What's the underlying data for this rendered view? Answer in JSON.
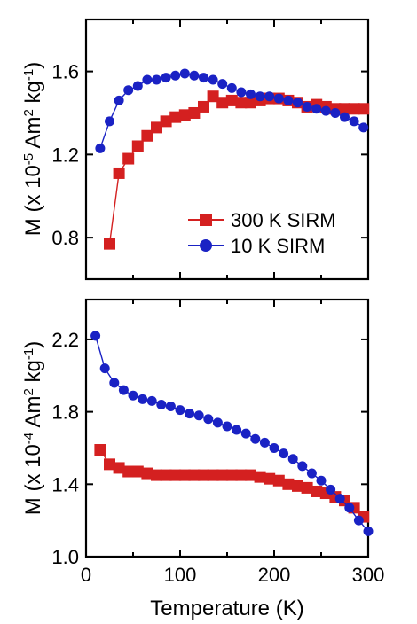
{
  "colors": {
    "red": "#d42020",
    "blue": "#1a22c4",
    "axis": "#000000"
  },
  "chart_data": [
    {
      "type": "line",
      "title": "",
      "ylabel": "M (x 10",
      "ylabel_exp": "-5",
      "ylabel_unit": " Am",
      "ylabel_exp2": "2",
      "ylabel_unit2": " kg",
      "ylabel_exp3": "-1",
      "ylabel_close": ")",
      "xlabel": "",
      "xlim": [
        0,
        300
      ],
      "ylim": [
        0.6,
        1.85
      ],
      "yticks": [
        0.8,
        1.2,
        1.6
      ],
      "yticklabels": [
        "0.8",
        "1.2",
        "1.6"
      ],
      "xticks": [
        0,
        100,
        200,
        300
      ],
      "legend": {
        "position": "lower-right",
        "entries": [
          "300 K SIRM",
          "10 K SIRM"
        ]
      },
      "series": [
        {
          "name": "300 K SIRM",
          "marker": "square",
          "x": [
            25,
            35,
            45,
            55,
            65,
            75,
            85,
            95,
            105,
            115,
            125,
            135,
            145,
            155,
            165,
            175,
            185,
            195,
            205,
            215,
            225,
            235,
            245,
            255,
            265,
            275,
            285,
            295
          ],
          "y": [
            0.77,
            1.11,
            1.18,
            1.24,
            1.29,
            1.33,
            1.36,
            1.38,
            1.39,
            1.4,
            1.43,
            1.48,
            1.45,
            1.46,
            1.45,
            1.45,
            1.46,
            1.47,
            1.47,
            1.46,
            1.45,
            1.43,
            1.44,
            1.43,
            1.42,
            1.42,
            1.42,
            1.42
          ]
        },
        {
          "name": "10 K SIRM",
          "marker": "circle",
          "x": [
            15,
            25,
            35,
            45,
            55,
            65,
            75,
            85,
            95,
            105,
            115,
            125,
            135,
            145,
            155,
            165,
            175,
            185,
            195,
            205,
            215,
            225,
            235,
            245,
            255,
            265,
            275,
            285,
            295
          ],
          "y": [
            1.23,
            1.36,
            1.46,
            1.51,
            1.53,
            1.56,
            1.56,
            1.57,
            1.58,
            1.59,
            1.58,
            1.57,
            1.56,
            1.54,
            1.52,
            1.5,
            1.49,
            1.48,
            1.48,
            1.47,
            1.46,
            1.45,
            1.43,
            1.42,
            1.41,
            1.4,
            1.38,
            1.36,
            1.33
          ]
        }
      ]
    },
    {
      "type": "line",
      "title": "",
      "ylabel": "M (x 10",
      "ylabel_exp": "-4",
      "ylabel_unit": " Am",
      "ylabel_exp2": "2",
      "ylabel_unit2": " kg",
      "ylabel_exp3": "-1",
      "ylabel_close": ")",
      "xlabel": "Temperature (K)",
      "xlim": [
        0,
        300
      ],
      "ylim": [
        1.0,
        2.42
      ],
      "yticks": [
        1.0,
        1.4,
        1.8,
        2.2
      ],
      "yticklabels": [
        "1.0",
        "1.4",
        "1.8",
        "2.2"
      ],
      "xticks": [
        0,
        100,
        200,
        300
      ],
      "xticklabels": [
        "0",
        "100",
        "200",
        "300"
      ],
      "series": [
        {
          "name": "300 K SIRM",
          "marker": "square",
          "x": [
            15,
            25,
            35,
            45,
            55,
            65,
            75,
            85,
            95,
            105,
            115,
            125,
            135,
            145,
            155,
            165,
            175,
            185,
            195,
            205,
            215,
            225,
            235,
            245,
            255,
            265,
            275,
            285,
            295
          ],
          "y": [
            1.59,
            1.51,
            1.49,
            1.47,
            1.47,
            1.46,
            1.45,
            1.45,
            1.45,
            1.45,
            1.45,
            1.45,
            1.45,
            1.45,
            1.45,
            1.45,
            1.45,
            1.44,
            1.43,
            1.42,
            1.4,
            1.39,
            1.38,
            1.36,
            1.35,
            1.33,
            1.31,
            1.27,
            1.22
          ]
        },
        {
          "name": "10 K SIRM",
          "marker": "circle",
          "x": [
            10,
            20,
            30,
            40,
            50,
            60,
            70,
            80,
            90,
            100,
            110,
            120,
            130,
            140,
            150,
            160,
            170,
            180,
            190,
            200,
            210,
            220,
            230,
            240,
            250,
            260,
            270,
            280,
            290,
            300
          ],
          "y": [
            2.22,
            2.04,
            1.96,
            1.92,
            1.89,
            1.87,
            1.86,
            1.84,
            1.83,
            1.81,
            1.79,
            1.78,
            1.76,
            1.74,
            1.72,
            1.7,
            1.68,
            1.65,
            1.63,
            1.6,
            1.57,
            1.54,
            1.5,
            1.46,
            1.42,
            1.37,
            1.32,
            1.27,
            1.2,
            1.14
          ]
        }
      ]
    }
  ]
}
